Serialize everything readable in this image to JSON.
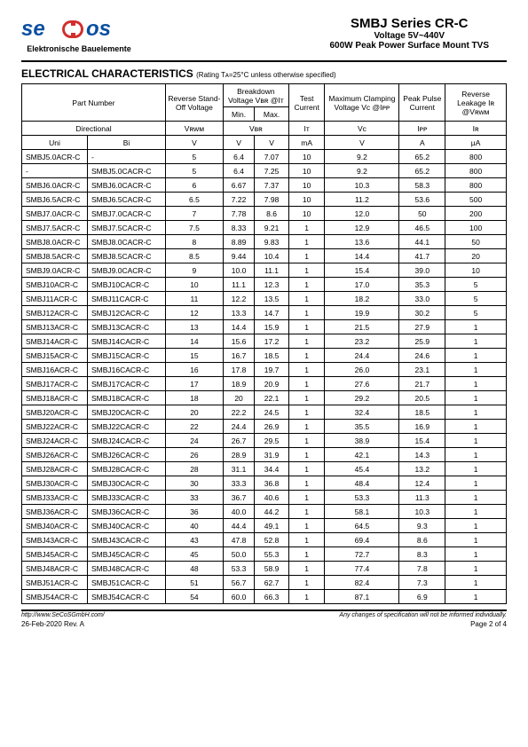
{
  "header": {
    "logo_text_left": "se",
    "logo_text_right": "os",
    "logo_sub": "Elektronische Bauelemente",
    "title_main": "SMBJ Series CR-C",
    "title_sub1": "Voltage 5V~440V",
    "title_sub2": "600W Peak Power Surface Mount TVS",
    "logo_colors": {
      "blue": "#0a4fa0",
      "red": "#d22e2e"
    }
  },
  "section": {
    "title": "ELECTRICAL CHARACTERISTICS",
    "note": "(Rating Tᴀ=25°C unless otherwise specified)"
  },
  "table": {
    "headers": {
      "part_number": "Part Number",
      "reverse_standoff": "Reverse Stand-Off Voltage",
      "breakdown": "Breakdown Voltage Vʙʀ @Iᴛ",
      "breakdown_min": "Min.",
      "breakdown_max": "Max.",
      "test_current": "Test Current",
      "max_clamp": "Maximum Clamping Voltage Vᴄ @Iᴘᴘ",
      "peak_pulse": "Peak Pulse Current",
      "reverse_leak": "Reverse Leakage Iʀ @Vʀᴡᴍ",
      "directional": "Directional",
      "uni": "Uni",
      "bi": "Bi",
      "vrwm": "Vʀᴡᴍ",
      "vbr": "Vʙʀ",
      "it": "Iᴛ",
      "vc": "Vᴄ",
      "ipp": "Iᴘᴘ",
      "ir": "Iʀ",
      "v": "V",
      "ma": "mA",
      "a": "A",
      "ua": "µA"
    },
    "rows": [
      {
        "uni": "SMBJ5.0ACR-C",
        "bi": "-",
        "v1": "5",
        "v2": "6.4",
        "v3": "7.07",
        "v4": "10",
        "v5": "9.2",
        "v6": "65.2",
        "v7": "800"
      },
      {
        "uni": "-",
        "bi": "SMBJ5.0CACR-C",
        "v1": "5",
        "v2": "6.4",
        "v3": "7.25",
        "v4": "10",
        "v5": "9.2",
        "v6": "65.2",
        "v7": "800"
      },
      {
        "uni": "SMBJ6.0ACR-C",
        "bi": "SMBJ6.0CACR-C",
        "v1": "6",
        "v2": "6.67",
        "v3": "7.37",
        "v4": "10",
        "v5": "10.3",
        "v6": "58.3",
        "v7": "800"
      },
      {
        "uni": "SMBJ6.5ACR-C",
        "bi": "SMBJ6.5CACR-C",
        "v1": "6.5",
        "v2": "7.22",
        "v3": "7.98",
        "v4": "10",
        "v5": "11.2",
        "v6": "53.6",
        "v7": "500"
      },
      {
        "uni": "SMBJ7.0ACR-C",
        "bi": "SMBJ7.0CACR-C",
        "v1": "7",
        "v2": "7.78",
        "v3": "8.6",
        "v4": "10",
        "v5": "12.0",
        "v6": "50",
        "v7": "200"
      },
      {
        "uni": "SMBJ7.5ACR-C",
        "bi": "SMBJ7.5CACR-C",
        "v1": "7.5",
        "v2": "8.33",
        "v3": "9.21",
        "v4": "1",
        "v5": "12.9",
        "v6": "46.5",
        "v7": "100"
      },
      {
        "uni": "SMBJ8.0ACR-C",
        "bi": "SMBJ8.0CACR-C",
        "v1": "8",
        "v2": "8.89",
        "v3": "9.83",
        "v4": "1",
        "v5": "13.6",
        "v6": "44.1",
        "v7": "50"
      },
      {
        "uni": "SMBJ8.5ACR-C",
        "bi": "SMBJ8.5CACR-C",
        "v1": "8.5",
        "v2": "9.44",
        "v3": "10.4",
        "v4": "1",
        "v5": "14.4",
        "v6": "41.7",
        "v7": "20"
      },
      {
        "uni": "SMBJ9.0ACR-C",
        "bi": "SMBJ9.0CACR-C",
        "v1": "9",
        "v2": "10.0",
        "v3": "11.1",
        "v4": "1",
        "v5": "15.4",
        "v6": "39.0",
        "v7": "10"
      },
      {
        "uni": "SMBJ10ACR-C",
        "bi": "SMBJ10CACR-C",
        "v1": "10",
        "v2": "11.1",
        "v3": "12.3",
        "v4": "1",
        "v5": "17.0",
        "v6": "35.3",
        "v7": "5"
      },
      {
        "uni": "SMBJ11ACR-C",
        "bi": "SMBJ11CACR-C",
        "v1": "11",
        "v2": "12.2",
        "v3": "13.5",
        "v4": "1",
        "v5": "18.2",
        "v6": "33.0",
        "v7": "5"
      },
      {
        "uni": "SMBJ12ACR-C",
        "bi": "SMBJ12CACR-C",
        "v1": "12",
        "v2": "13.3",
        "v3": "14.7",
        "v4": "1",
        "v5": "19.9",
        "v6": "30.2",
        "v7": "5"
      },
      {
        "uni": "SMBJ13ACR-C",
        "bi": "SMBJ13CACR-C",
        "v1": "13",
        "v2": "14.4",
        "v3": "15.9",
        "v4": "1",
        "v5": "21.5",
        "v6": "27.9",
        "v7": "1"
      },
      {
        "uni": "SMBJ14ACR-C",
        "bi": "SMBJ14CACR-C",
        "v1": "14",
        "v2": "15.6",
        "v3": "17.2",
        "v4": "1",
        "v5": "23.2",
        "v6": "25.9",
        "v7": "1"
      },
      {
        "uni": "SMBJ15ACR-C",
        "bi": "SMBJ15CACR-C",
        "v1": "15",
        "v2": "16.7",
        "v3": "18.5",
        "v4": "1",
        "v5": "24.4",
        "v6": "24.6",
        "v7": "1"
      },
      {
        "uni": "SMBJ16ACR-C",
        "bi": "SMBJ16CACR-C",
        "v1": "16",
        "v2": "17.8",
        "v3": "19.7",
        "v4": "1",
        "v5": "26.0",
        "v6": "23.1",
        "v7": "1"
      },
      {
        "uni": "SMBJ17ACR-C",
        "bi": "SMBJ17CACR-C",
        "v1": "17",
        "v2": "18.9",
        "v3": "20.9",
        "v4": "1",
        "v5": "27.6",
        "v6": "21.7",
        "v7": "1"
      },
      {
        "uni": "SMBJ18ACR-C",
        "bi": "SMBJ18CACR-C",
        "v1": "18",
        "v2": "20",
        "v3": "22.1",
        "v4": "1",
        "v5": "29.2",
        "v6": "20.5",
        "v7": "1"
      },
      {
        "uni": "SMBJ20ACR-C",
        "bi": "SMBJ20CACR-C",
        "v1": "20",
        "v2": "22.2",
        "v3": "24.5",
        "v4": "1",
        "v5": "32.4",
        "v6": "18.5",
        "v7": "1"
      },
      {
        "uni": "SMBJ22ACR-C",
        "bi": "SMBJ22CACR-C",
        "v1": "22",
        "v2": "24.4",
        "v3": "26.9",
        "v4": "1",
        "v5": "35.5",
        "v6": "16.9",
        "v7": "1"
      },
      {
        "uni": "SMBJ24ACR-C",
        "bi": "SMBJ24CACR-C",
        "v1": "24",
        "v2": "26.7",
        "v3": "29.5",
        "v4": "1",
        "v5": "38.9",
        "v6": "15.4",
        "v7": "1"
      },
      {
        "uni": "SMBJ26ACR-C",
        "bi": "SMBJ26CACR-C",
        "v1": "26",
        "v2": "28.9",
        "v3": "31.9",
        "v4": "1",
        "v5": "42.1",
        "v6": "14.3",
        "v7": "1"
      },
      {
        "uni": "SMBJ28ACR-C",
        "bi": "SMBJ28CACR-C",
        "v1": "28",
        "v2": "31.1",
        "v3": "34.4",
        "v4": "1",
        "v5": "45.4",
        "v6": "13.2",
        "v7": "1"
      },
      {
        "uni": "SMBJ30ACR-C",
        "bi": "SMBJ30CACR-C",
        "v1": "30",
        "v2": "33.3",
        "v3": "36.8",
        "v4": "1",
        "v5": "48.4",
        "v6": "12.4",
        "v7": "1"
      },
      {
        "uni": "SMBJ33ACR-C",
        "bi": "SMBJ33CACR-C",
        "v1": "33",
        "v2": "36.7",
        "v3": "40.6",
        "v4": "1",
        "v5": "53.3",
        "v6": "11.3",
        "v7": "1"
      },
      {
        "uni": "SMBJ36ACR-C",
        "bi": "SMBJ36CACR-C",
        "v1": "36",
        "v2": "40.0",
        "v3": "44.2",
        "v4": "1",
        "v5": "58.1",
        "v6": "10.3",
        "v7": "1"
      },
      {
        "uni": "SMBJ40ACR-C",
        "bi": "SMBJ40CACR-C",
        "v1": "40",
        "v2": "44.4",
        "v3": "49.1",
        "v4": "1",
        "v5": "64.5",
        "v6": "9.3",
        "v7": "1"
      },
      {
        "uni": "SMBJ43ACR-C",
        "bi": "SMBJ43CACR-C",
        "v1": "43",
        "v2": "47.8",
        "v3": "52.8",
        "v4": "1",
        "v5": "69.4",
        "v6": "8.6",
        "v7": "1"
      },
      {
        "uni": "SMBJ45ACR-C",
        "bi": "SMBJ45CACR-C",
        "v1": "45",
        "v2": "50.0",
        "v3": "55.3",
        "v4": "1",
        "v5": "72.7",
        "v6": "8.3",
        "v7": "1"
      },
      {
        "uni": "SMBJ48ACR-C",
        "bi": "SMBJ48CACR-C",
        "v1": "48",
        "v2": "53.3",
        "v3": "58.9",
        "v4": "1",
        "v5": "77.4",
        "v6": "7.8",
        "v7": "1"
      },
      {
        "uni": "SMBJ51ACR-C",
        "bi": "SMBJ51CACR-C",
        "v1": "51",
        "v2": "56.7",
        "v3": "62.7",
        "v4": "1",
        "v5": "82.4",
        "v6": "7.3",
        "v7": "1"
      },
      {
        "uni": "SMBJ54ACR-C",
        "bi": "SMBJ54CACR-C",
        "v1": "54",
        "v2": "60.0",
        "v3": "66.3",
        "v4": "1",
        "v5": "87.1",
        "v6": "6.9",
        "v7": "1"
      }
    ]
  },
  "footer": {
    "url": "http://www.SeCoSGmbH.com/",
    "disclaimer": "Any changes of specification will not be informed individually.",
    "date": "26-Feb-2020 Rev. A",
    "page": "Page 2 of 4"
  }
}
